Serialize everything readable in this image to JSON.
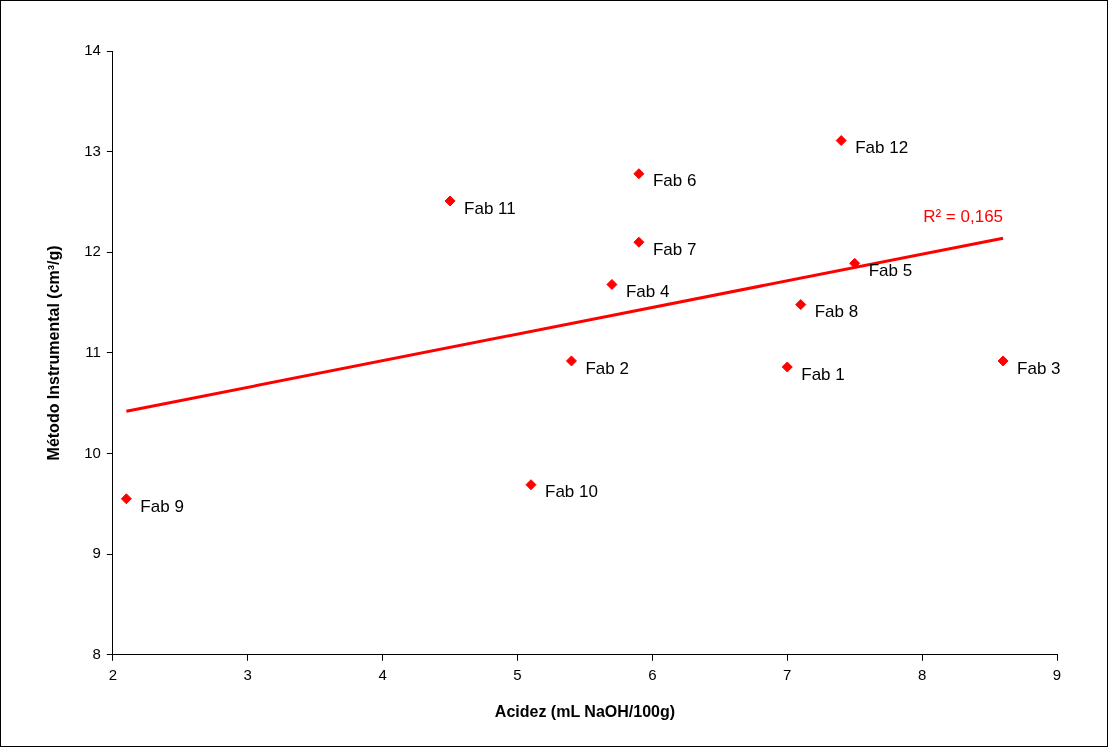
{
  "chart_data": {
    "type": "scatter",
    "xlabel": "Acidez (mL NaOH/100g)",
    "ylabel": "Método Instrumental (cm³/g)",
    "x": [
      7.0,
      5.4,
      8.6,
      5.7,
      7.5,
      5.9,
      5.9,
      7.1,
      2.1,
      5.1,
      4.5,
      7.4
    ],
    "series": [
      {
        "type": "scatter",
        "color": "#ff0000",
        "marker": "diamond",
        "values": [
          10.86,
          10.92,
          10.92,
          11.68,
          11.89,
          12.78,
          12.1,
          11.48,
          9.55,
          9.69,
          12.51,
          13.11
        ]
      },
      {
        "type": "line",
        "color": "#ff0000",
        "marker": "none",
        "x": [
          2.1,
          8.6
        ],
        "values": [
          10.42,
          12.14
        ]
      }
    ],
    "xlim": [
      2,
      9
    ],
    "xticks": [
      2,
      3,
      4,
      5,
      6,
      7,
      8,
      9
    ],
    "ylim": [
      8,
      14
    ],
    "yticks": [
      8,
      9,
      10,
      11,
      12,
      13,
      14
    ],
    "grid": false,
    "legend": false,
    "line_style": "solid",
    "annotations": [
      {
        "text": "Fab 1",
        "x": 7.0,
        "y": 10.86
      },
      {
        "text": "Fab 2",
        "x": 5.4,
        "y": 10.92
      },
      {
        "text": "Fab 3",
        "x": 8.6,
        "y": 10.92
      },
      {
        "text": "Fab 4",
        "x": 5.7,
        "y": 11.68
      },
      {
        "text": "Fab 5",
        "x": 7.5,
        "y": 11.89
      },
      {
        "text": "Fab 6",
        "x": 5.9,
        "y": 12.78
      },
      {
        "text": "Fab 7",
        "x": 5.9,
        "y": 12.1
      },
      {
        "text": "Fab 8",
        "x": 7.1,
        "y": 11.48
      },
      {
        "text": "Fab 9",
        "x": 2.1,
        "y": 9.55
      },
      {
        "text": "Fab 10",
        "x": 5.1,
        "y": 9.69
      },
      {
        "text": "Fab 11",
        "x": 4.5,
        "y": 12.51
      },
      {
        "text": "Fab 12",
        "x": 7.4,
        "y": 13.11
      },
      {
        "text": "R² = 0,165",
        "x": 8.6,
        "y": 12.14
      }
    ]
  }
}
